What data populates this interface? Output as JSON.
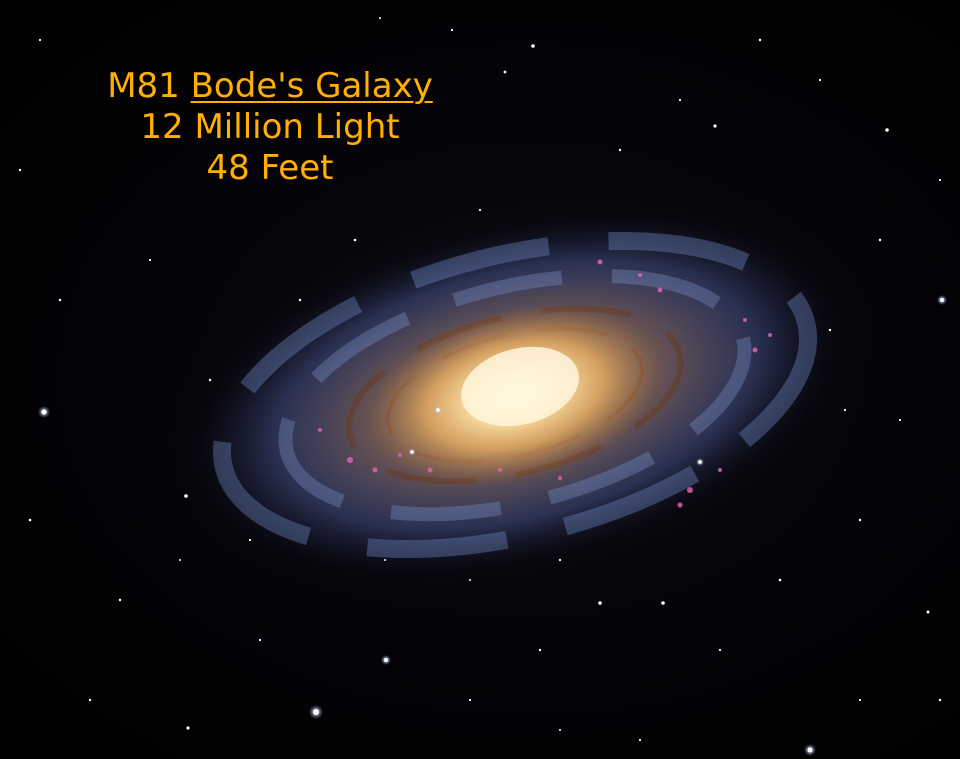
{
  "caption": {
    "designation": "M81",
    "name": "Bode's Galaxy",
    "distance": "12 Million Light",
    "scale": "48 Feet"
  },
  "colors": {
    "text": "#FFB000",
    "background": "#000000",
    "core": "#FFE8B0",
    "arms": "#6F8FCF",
    "dust": "#8A4A25",
    "hii_regions": "#E060B0"
  }
}
